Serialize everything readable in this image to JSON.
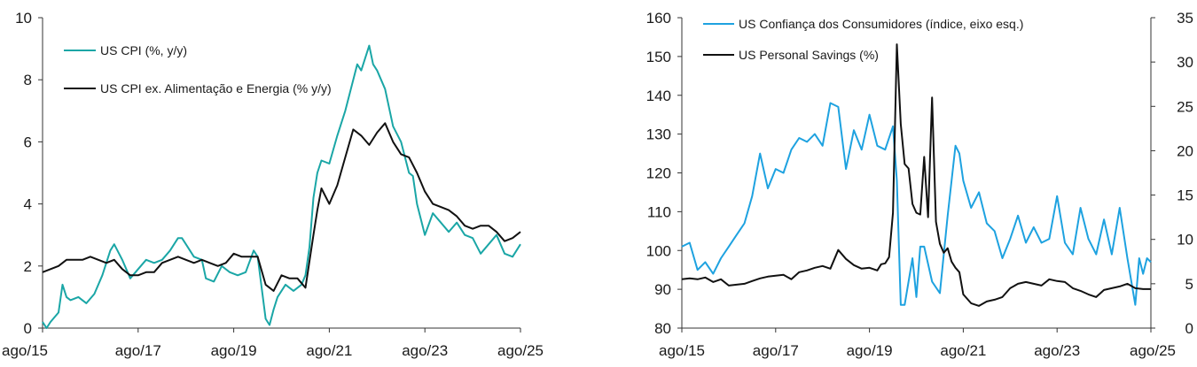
{
  "chart_data": [
    {
      "type": "line",
      "title": "",
      "xlabel": "",
      "ylabel": "",
      "ylim": [
        0,
        10
      ],
      "yticks": [
        0,
        2,
        4,
        6,
        8,
        10
      ],
      "x_start": 2015.583,
      "x_end": 2025.583,
      "x_ticks": [
        {
          "label": "ago/15",
          "x": 2015.583
        },
        {
          "label": "ago/17",
          "x": 2017.583
        },
        {
          "label": "ago/19",
          "x": 2019.583
        },
        {
          "label": "ago/21",
          "x": 2021.583
        },
        {
          "label": "ago/23",
          "x": 2023.583
        },
        {
          "label": "ago/25",
          "x": 2025.583
        }
      ],
      "series": [
        {
          "name": "US CPI (%, y/y)",
          "color": "#1aa6a6",
          "x": [
            2015.583,
            2015.667,
            2015.75,
            2015.917,
            2016.0,
            2016.083,
            2016.167,
            2016.333,
            2016.5,
            2016.667,
            2016.833,
            2017.0,
            2017.083,
            2017.25,
            2017.417,
            2017.583,
            2017.75,
            2017.917,
            2018.083,
            2018.25,
            2018.417,
            2018.5,
            2018.583,
            2018.75,
            2018.917,
            2019.0,
            2019.167,
            2019.333,
            2019.5,
            2019.667,
            2019.833,
            2020.0,
            2020.083,
            2020.25,
            2020.333,
            2020.417,
            2020.5,
            2020.667,
            2020.833,
            2021.0,
            2021.083,
            2021.167,
            2021.25,
            2021.333,
            2021.417,
            2021.583,
            2021.75,
            2021.917,
            2022.0,
            2022.167,
            2022.25,
            2022.417,
            2022.5,
            2022.583,
            2022.75,
            2022.917,
            2023.083,
            2023.25,
            2023.333,
            2023.417,
            2023.583,
            2023.75,
            2023.917,
            2024.083,
            2024.25,
            2024.417,
            2024.583,
            2024.75,
            2024.917,
            2025.083,
            2025.25,
            2025.417,
            2025.583
          ],
          "values": [
            0.2,
            0.0,
            0.2,
            0.5,
            1.4,
            1.0,
            0.9,
            1.0,
            0.8,
            1.1,
            1.7,
            2.5,
            2.7,
            2.2,
            1.6,
            1.9,
            2.2,
            2.1,
            2.2,
            2.5,
            2.9,
            2.9,
            2.7,
            2.3,
            2.2,
            1.6,
            1.5,
            2.0,
            1.8,
            1.7,
            1.8,
            2.5,
            2.3,
            0.3,
            0.1,
            0.6,
            1.0,
            1.4,
            1.2,
            1.4,
            1.7,
            2.6,
            4.2,
            5.0,
            5.4,
            5.3,
            6.2,
            7.0,
            7.5,
            8.5,
            8.3,
            9.1,
            8.5,
            8.3,
            7.7,
            6.5,
            6.0,
            5.0,
            4.9,
            4.0,
            3.0,
            3.7,
            3.4,
            3.1,
            3.4,
            3.0,
            2.9,
            2.4,
            2.7,
            3.0,
            2.4,
            2.3,
            2.7
          ]
        },
        {
          "name": "US CPI ex. Alimentação e Energia (% y/y)",
          "color": "#111111",
          "x": [
            2015.583,
            2015.75,
            2015.917,
            2016.083,
            2016.25,
            2016.417,
            2016.583,
            2016.75,
            2016.917,
            2017.083,
            2017.25,
            2017.417,
            2017.583,
            2017.75,
            2017.917,
            2018.083,
            2018.25,
            2018.417,
            2018.583,
            2018.75,
            2018.917,
            2019.083,
            2019.25,
            2019.417,
            2019.583,
            2019.75,
            2019.917,
            2020.083,
            2020.25,
            2020.417,
            2020.583,
            2020.75,
            2020.917,
            2021.083,
            2021.25,
            2021.333,
            2021.417,
            2021.583,
            2021.75,
            2021.917,
            2022.083,
            2022.25,
            2022.417,
            2022.583,
            2022.75,
            2022.917,
            2023.083,
            2023.25,
            2023.417,
            2023.583,
            2023.75,
            2023.917,
            2024.083,
            2024.25,
            2024.417,
            2024.583,
            2024.75,
            2024.917,
            2025.083,
            2025.25,
            2025.417,
            2025.583
          ],
          "values": [
            1.8,
            1.9,
            2.0,
            2.2,
            2.2,
            2.2,
            2.3,
            2.2,
            2.1,
            2.2,
            1.9,
            1.7,
            1.7,
            1.8,
            1.8,
            2.1,
            2.2,
            2.3,
            2.2,
            2.1,
            2.2,
            2.1,
            2.0,
            2.1,
            2.4,
            2.3,
            2.3,
            2.3,
            1.4,
            1.2,
            1.7,
            1.6,
            1.6,
            1.3,
            3.0,
            3.8,
            4.5,
            4.0,
            4.6,
            5.5,
            6.4,
            6.2,
            5.9,
            6.3,
            6.6,
            6.0,
            5.6,
            5.5,
            5.0,
            4.4,
            4.0,
            3.9,
            3.8,
            3.6,
            3.3,
            3.2,
            3.3,
            3.3,
            3.1,
            2.8,
            2.9,
            3.1
          ]
        }
      ]
    },
    {
      "type": "line",
      "title": "",
      "xlabel": "",
      "ylabel_left": "",
      "ylabel_right": "",
      "ylim_left": [
        80,
        160
      ],
      "yticks_left": [
        80,
        90,
        100,
        110,
        120,
        130,
        140,
        150,
        160
      ],
      "ylim_right": [
        0,
        35
      ],
      "yticks_right": [
        0,
        5,
        10,
        15,
        20,
        25,
        30,
        35
      ],
      "x_start": 2015.583,
      "x_end": 2025.583,
      "x_ticks": [
        {
          "label": "ago/15",
          "x": 2015.583
        },
        {
          "label": "ago/17",
          "x": 2017.583
        },
        {
          "label": "ago/19",
          "x": 2019.583
        },
        {
          "label": "ago/21",
          "x": 2021.583
        },
        {
          "label": "ago/23",
          "x": 2023.583
        },
        {
          "label": "ago/25",
          "x": 2025.583
        }
      ],
      "series": [
        {
          "name": "US Confiança dos Consumidores (índice, eixo esq.)",
          "color": "#1ea2e0",
          "axis": "left",
          "x": [
            2015.583,
            2015.75,
            2015.917,
            2016.083,
            2016.25,
            2016.417,
            2016.583,
            2016.75,
            2016.917,
            2017.083,
            2017.25,
            2017.417,
            2017.583,
            2017.75,
            2017.917,
            2018.083,
            2018.25,
            2018.417,
            2018.583,
            2018.75,
            2018.917,
            2019.083,
            2019.25,
            2019.417,
            2019.583,
            2019.75,
            2019.917,
            2020.083,
            2020.167,
            2020.25,
            2020.333,
            2020.5,
            2020.583,
            2020.667,
            2020.75,
            2020.917,
            2021.083,
            2021.25,
            2021.417,
            2021.5,
            2021.583,
            2021.75,
            2021.917,
            2022.083,
            2022.25,
            2022.417,
            2022.583,
            2022.75,
            2022.917,
            2023.083,
            2023.25,
            2023.417,
            2023.583,
            2023.75,
            2023.917,
            2024.083,
            2024.25,
            2024.417,
            2024.583,
            2024.75,
            2024.917,
            2025.083,
            2025.25,
            2025.333,
            2025.417,
            2025.5,
            2025.583
          ],
          "values": [
            101,
            102,
            95,
            97,
            94,
            98,
            101,
            104,
            107,
            114,
            125,
            116,
            121,
            120,
            126,
            129,
            128,
            130,
            127,
            138,
            137,
            121,
            131,
            126,
            135,
            127,
            126,
            132,
            118,
            86,
            86,
            98,
            88,
            101,
            101,
            92,
            89,
            109,
            127,
            125,
            118,
            111,
            115,
            107,
            105,
            98,
            103,
            109,
            102,
            106,
            102,
            103,
            114,
            102,
            99,
            111,
            103,
            99,
            108,
            99,
            111,
            98,
            86,
            98,
            94,
            98,
            97
          ]
        },
        {
          "name": "US Personal Savings (%)",
          "color": "#111111",
          "axis": "right",
          "x": [
            2015.583,
            2015.75,
            2015.917,
            2016.083,
            2016.25,
            2016.417,
            2016.583,
            2016.75,
            2016.917,
            2017.083,
            2017.25,
            2017.417,
            2017.583,
            2017.75,
            2017.917,
            2018.083,
            2018.25,
            2018.417,
            2018.583,
            2018.75,
            2018.917,
            2019.083,
            2019.25,
            2019.417,
            2019.583,
            2019.75,
            2019.833,
            2019.917,
            2020.0,
            2020.083,
            2020.167,
            2020.25,
            2020.333,
            2020.417,
            2020.5,
            2020.583,
            2020.667,
            2020.75,
            2020.833,
            2020.917,
            2021.0,
            2021.083,
            2021.167,
            2021.25,
            2021.333,
            2021.417,
            2021.5,
            2021.583,
            2021.75,
            2021.917,
            2022.083,
            2022.25,
            2022.417,
            2022.583,
            2022.75,
            2022.917,
            2023.083,
            2023.25,
            2023.417,
            2023.583,
            2023.75,
            2023.917,
            2024.083,
            2024.25,
            2024.417,
            2024.583,
            2024.75,
            2024.917,
            2025.083,
            2025.25,
            2025.417,
            2025.583
          ],
          "values": [
            5.5,
            5.6,
            5.5,
            5.7,
            5.2,
            5.5,
            4.8,
            4.9,
            5.0,
            5.3,
            5.6,
            5.8,
            5.9,
            6.0,
            5.5,
            6.3,
            6.5,
            6.8,
            7.0,
            6.7,
            8.8,
            7.8,
            7.1,
            6.7,
            6.8,
            6.5,
            7.2,
            7.3,
            8.0,
            13.0,
            32.0,
            23.0,
            18.5,
            18.0,
            14.0,
            13.0,
            12.8,
            19.3,
            12.5,
            26.0,
            12.0,
            9.5,
            8.5,
            9.0,
            7.5,
            6.8,
            6.3,
            3.8,
            2.8,
            2.5,
            3.0,
            3.2,
            3.5,
            4.5,
            5.0,
            5.2,
            5.0,
            4.8,
            5.5,
            5.3,
            5.2,
            4.5,
            4.2,
            3.8,
            3.5,
            4.3,
            4.5,
            4.7,
            5.0,
            4.5,
            4.4,
            4.4
          ]
        }
      ]
    }
  ]
}
